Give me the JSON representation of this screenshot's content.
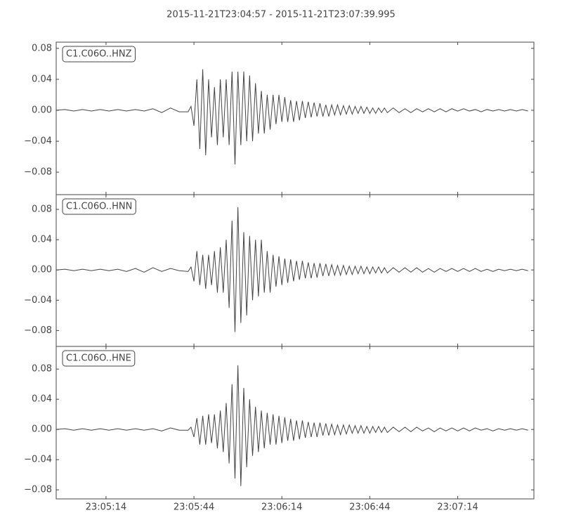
{
  "title": "2015-11-21T23:04:57  -  2015-11-21T23:07:39.995",
  "chart_data": [
    {
      "type": "line",
      "label": "C1.C06O..HNZ",
      "color": "#444444",
      "ylim": [
        -0.109,
        0.088
      ],
      "yticks": [
        0.08,
        0.04,
        {
          "value": 0,
          "label": "0.00"
        },
        {
          "value": -0.04,
          "label": "−0.04"
        },
        {
          "value": -0.08,
          "label": "−0.08"
        }
      ],
      "x": [
        "23:04:57",
        "23:05:00",
        "23:05:03",
        "23:05:06",
        "23:05:09",
        "23:05:12",
        "23:05:15",
        "23:05:18",
        "23:05:21",
        "23:05:24",
        "23:05:27",
        "23:05:30",
        "23:05:33",
        "23:05:36",
        "23:05:39",
        "23:05:42",
        "23:05:43",
        "23:05:44",
        "23:05:45",
        "23:05:46",
        "23:05:47",
        "23:05:48",
        "23:05:49",
        "23:05:50",
        "23:05:51",
        "23:05:52",
        "23:05:53",
        "23:05:54",
        "23:05:55",
        "23:05:56",
        "23:05:57",
        "23:05:58",
        "23:05:59",
        "23:06:00",
        "23:06:01",
        "23:06:02",
        "23:06:03",
        "23:06:04",
        "23:06:05",
        "23:06:06",
        "23:06:07",
        "23:06:08",
        "23:06:09",
        "23:06:10",
        "23:06:11",
        "23:06:12",
        "23:06:13",
        "23:06:14",
        "23:06:15",
        "23:06:16",
        "23:06:17",
        "23:06:18",
        "23:06:19",
        "23:06:20",
        "23:06:21",
        "23:06:22",
        "23:06:23",
        "23:06:24",
        "23:06:25",
        "23:06:26",
        "23:06:27",
        "23:06:28",
        "23:06:29",
        "23:06:30",
        "23:06:31",
        "23:06:32",
        "23:06:33",
        "23:06:34",
        "23:06:35",
        "23:06:36",
        "23:06:37",
        "23:06:38",
        "23:06:39",
        "23:06:40",
        "23:06:41",
        "23:06:42",
        "23:06:43",
        "23:06:44",
        "23:06:45",
        "23:06:46",
        "23:06:47",
        "23:06:48",
        "23:06:49",
        "23:06:50",
        "23:06:52",
        "23:06:54",
        "23:06:56",
        "23:06:58",
        "23:07:00",
        "23:07:02",
        "23:07:04",
        "23:07:06",
        "23:07:08",
        "23:07:10",
        "23:07:12",
        "23:07:14",
        "23:07:16",
        "23:07:18",
        "23:07:20",
        "23:07:22",
        "23:07:24",
        "23:07:26",
        "23:07:28",
        "23:07:30",
        "23:07:32",
        "23:07:34",
        "23:07:36",
        "23:07:38"
      ],
      "values": [
        0,
        0.001,
        -0.001,
        0.001,
        -0.001,
        0.001,
        -0.001,
        0.001,
        -0.001,
        0.001,
        -0.001,
        0.002,
        -0.003,
        0.003,
        -0.002,
        -0.002,
        0.005,
        -0.02,
        0.04,
        -0.05,
        0.053,
        -0.058,
        0.04,
        -0.035,
        0.03,
        -0.045,
        0.04,
        -0.035,
        0.04,
        -0.045,
        0.05,
        -0.07,
        0.05,
        -0.045,
        0.05,
        -0.04,
        0.045,
        -0.04,
        0.035,
        -0.03,
        0.025,
        -0.03,
        0.02,
        -0.025,
        0.02,
        -0.018,
        0.02,
        -0.015,
        0.017,
        -0.015,
        0.013,
        -0.015,
        0.012,
        -0.013,
        0.012,
        -0.01,
        0.011,
        -0.009,
        0.01,
        -0.008,
        0.009,
        -0.008,
        0.007,
        -0.008,
        0.007,
        -0.006,
        0.007,
        -0.006,
        0.006,
        -0.005,
        0.006,
        -0.005,
        0.005,
        -0.004,
        0.005,
        -0.004,
        0.004,
        -0.004,
        0.003,
        -0.004,
        0.003,
        -0.003,
        0.003,
        -0.003,
        0.003,
        -0.003,
        0.002,
        -0.003,
        0.002,
        -0.002,
        0.002,
        -0.002,
        0.002,
        -0.002,
        0.002,
        -0.001,
        0.002,
        -0.001,
        0.001,
        -0.002,
        0.001,
        -0.001,
        0.001,
        -0.001,
        0.001,
        -0.001,
        0.001,
        -0.001
      ]
    },
    {
      "type": "line",
      "label": "C1.C06O..HNN",
      "color": "#444444",
      "ylim": [
        -0.101,
        0.0995
      ],
      "yticks": [
        0.08,
        0.04,
        {
          "value": 0,
          "label": "0.00"
        },
        {
          "value": -0.04,
          "label": "−0.04"
        },
        {
          "value": -0.08,
          "label": "−0.08"
        }
      ],
      "x": [
        "23:04:57",
        "23:05:00",
        "23:05:03",
        "23:05:06",
        "23:05:09",
        "23:05:12",
        "23:05:15",
        "23:05:18",
        "23:05:21",
        "23:05:24",
        "23:05:27",
        "23:05:30",
        "23:05:33",
        "23:05:36",
        "23:05:39",
        "23:05:42",
        "23:05:43",
        "23:05:44",
        "23:05:45",
        "23:05:46",
        "23:05:47",
        "23:05:48",
        "23:05:49",
        "23:05:50",
        "23:05:51",
        "23:05:52",
        "23:05:53",
        "23:05:54",
        "23:05:55",
        "23:05:56",
        "23:05:57",
        "23:05:58",
        "23:05:59",
        "23:06:00",
        "23:06:01",
        "23:06:02",
        "23:06:03",
        "23:06:04",
        "23:06:05",
        "23:06:06",
        "23:06:07",
        "23:06:08",
        "23:06:09",
        "23:06:10",
        "23:06:11",
        "23:06:12",
        "23:06:13",
        "23:06:14",
        "23:06:15",
        "23:06:16",
        "23:06:17",
        "23:06:18",
        "23:06:19",
        "23:06:20",
        "23:06:21",
        "23:06:22",
        "23:06:23",
        "23:06:24",
        "23:06:25",
        "23:06:26",
        "23:06:27",
        "23:06:28",
        "23:06:29",
        "23:06:30",
        "23:06:31",
        "23:06:32",
        "23:06:33",
        "23:06:34",
        "23:06:35",
        "23:06:36",
        "23:06:37",
        "23:06:38",
        "23:06:39",
        "23:06:40",
        "23:06:41",
        "23:06:42",
        "23:06:43",
        "23:06:44",
        "23:06:45",
        "23:06:46",
        "23:06:47",
        "23:06:48",
        "23:06:49",
        "23:06:50",
        "23:06:52",
        "23:06:54",
        "23:06:56",
        "23:06:58",
        "23:07:00",
        "23:07:02",
        "23:07:04",
        "23:07:06",
        "23:07:08",
        "23:07:10",
        "23:07:12",
        "23:07:14",
        "23:07:16",
        "23:07:18",
        "23:07:20",
        "23:07:22",
        "23:07:24",
        "23:07:26",
        "23:07:28",
        "23:07:30",
        "23:07:32",
        "23:07:34",
        "23:07:36",
        "23:07:38"
      ],
      "values": [
        0,
        0.001,
        -0.001,
        0.001,
        -0.001,
        0.001,
        -0.001,
        0.001,
        -0.002,
        0.002,
        -0.003,
        0.003,
        -0.002,
        0.002,
        -0.001,
        -0.002,
        0.004,
        -0.015,
        0.025,
        -0.02,
        0.02,
        -0.025,
        0.02,
        -0.02,
        0.025,
        -0.03,
        0.03,
        -0.03,
        0.04,
        -0.05,
        0.065,
        -0.082,
        0.083,
        -0.07,
        0.05,
        -0.06,
        0.045,
        -0.04,
        0.04,
        -0.035,
        0.04,
        -0.03,
        0.025,
        -0.03,
        0.02,
        -0.022,
        0.018,
        -0.02,
        0.015,
        -0.017,
        0.014,
        -0.015,
        0.012,
        -0.013,
        0.012,
        -0.011,
        0.01,
        -0.011,
        0.009,
        -0.01,
        0.009,
        -0.008,
        0.008,
        -0.008,
        0.007,
        -0.007,
        0.006,
        -0.007,
        0.006,
        -0.006,
        0.005,
        -0.006,
        0.005,
        -0.005,
        0.005,
        -0.005,
        0.004,
        -0.005,
        0.004,
        -0.004,
        0.004,
        -0.004,
        0.003,
        -0.004,
        0.003,
        -0.003,
        0.003,
        -0.003,
        0.003,
        -0.003,
        0.002,
        -0.003,
        0.002,
        -0.002,
        0.002,
        -0.002,
        0.002,
        -0.002,
        0.002,
        -0.002,
        0.001,
        -0.002,
        0.001,
        -0.001,
        0.001,
        -0.001,
        0.001,
        -0.001
      ]
    },
    {
      "type": "line",
      "label": "C1.C06O..HNE",
      "color": "#444444",
      "ylim": [
        -0.092,
        0.11
      ],
      "yticks": [
        0.08,
        0.04,
        {
          "value": 0,
          "label": "0.00"
        },
        {
          "value": -0.04,
          "label": "−0.04"
        },
        {
          "value": -0.08,
          "label": "−0.08"
        }
      ],
      "xlim": [
        "23:04:57",
        "23:07:39.995"
      ],
      "xticks": [
        "23:05:14",
        "23:05:44",
        "23:06:14",
        "23:06:44",
        "23:07:14"
      ],
      "x": [
        "23:04:57",
        "23:05:00",
        "23:05:03",
        "23:05:06",
        "23:05:09",
        "23:05:12",
        "23:05:15",
        "23:05:18",
        "23:05:21",
        "23:05:24",
        "23:05:27",
        "23:05:30",
        "23:05:33",
        "23:05:36",
        "23:05:39",
        "23:05:42",
        "23:05:43",
        "23:05:44",
        "23:05:45",
        "23:05:46",
        "23:05:47",
        "23:05:48",
        "23:05:49",
        "23:05:50",
        "23:05:51",
        "23:05:52",
        "23:05:53",
        "23:05:54",
        "23:05:55",
        "23:05:56",
        "23:05:57",
        "23:05:58",
        "23:05:59",
        "23:06:00",
        "23:06:01",
        "23:06:02",
        "23:06:03",
        "23:06:04",
        "23:06:05",
        "23:06:06",
        "23:06:07",
        "23:06:08",
        "23:06:09",
        "23:06:10",
        "23:06:11",
        "23:06:12",
        "23:06:13",
        "23:06:14",
        "23:06:15",
        "23:06:16",
        "23:06:17",
        "23:06:18",
        "23:06:19",
        "23:06:20",
        "23:06:21",
        "23:06:22",
        "23:06:23",
        "23:06:24",
        "23:06:25",
        "23:06:26",
        "23:06:27",
        "23:06:28",
        "23:06:29",
        "23:06:30",
        "23:06:31",
        "23:06:32",
        "23:06:33",
        "23:06:34",
        "23:06:35",
        "23:06:36",
        "23:06:37",
        "23:06:38",
        "23:06:39",
        "23:06:40",
        "23:06:41",
        "23:06:42",
        "23:06:43",
        "23:06:44",
        "23:06:45",
        "23:06:46",
        "23:06:47",
        "23:06:48",
        "23:06:49",
        "23:06:50",
        "23:06:52",
        "23:06:54",
        "23:06:56",
        "23:06:58",
        "23:07:00",
        "23:07:02",
        "23:07:04",
        "23:07:06",
        "23:07:08",
        "23:07:10",
        "23:07:12",
        "23:07:14",
        "23:07:16",
        "23:07:18",
        "23:07:20",
        "23:07:22",
        "23:07:24",
        "23:07:26",
        "23:07:28",
        "23:07:30",
        "23:07:32",
        "23:07:34",
        "23:07:36",
        "23:07:38"
      ],
      "values": [
        0,
        0.001,
        -0.001,
        0.001,
        -0.001,
        0.001,
        -0.001,
        0.001,
        -0.001,
        0.001,
        -0.001,
        0.001,
        -0.002,
        0.002,
        -0.001,
        -0.001,
        0.003,
        -0.01,
        0.015,
        -0.02,
        0.018,
        -0.02,
        0.02,
        -0.018,
        0.02,
        -0.025,
        0.025,
        -0.03,
        0.035,
        -0.045,
        0.06,
        -0.065,
        0.085,
        -0.075,
        0.055,
        -0.05,
        0.04,
        -0.035,
        0.03,
        -0.03,
        0.025,
        -0.025,
        0.022,
        -0.02,
        0.02,
        -0.02,
        0.018,
        -0.018,
        0.016,
        -0.015,
        0.014,
        -0.015,
        0.012,
        -0.013,
        0.012,
        -0.011,
        0.01,
        -0.01,
        0.009,
        -0.01,
        0.009,
        -0.008,
        0.008,
        -0.008,
        0.007,
        -0.007,
        0.006,
        -0.007,
        0.006,
        -0.006,
        0.006,
        -0.005,
        0.005,
        -0.005,
        0.005,
        -0.005,
        0.004,
        -0.005,
        0.004,
        -0.004,
        0.004,
        -0.004,
        0.003,
        -0.004,
        0.003,
        -0.003,
        0.003,
        -0.003,
        0.003,
        -0.002,
        0.002,
        -0.003,
        0.002,
        -0.002,
        0.002,
        -0.002,
        0.002,
        -0.002,
        0.002,
        -0.001,
        0.001,
        -0.002,
        0.001,
        -0.001,
        0.001,
        -0.001,
        0.001,
        -0.001
      ]
    }
  ]
}
